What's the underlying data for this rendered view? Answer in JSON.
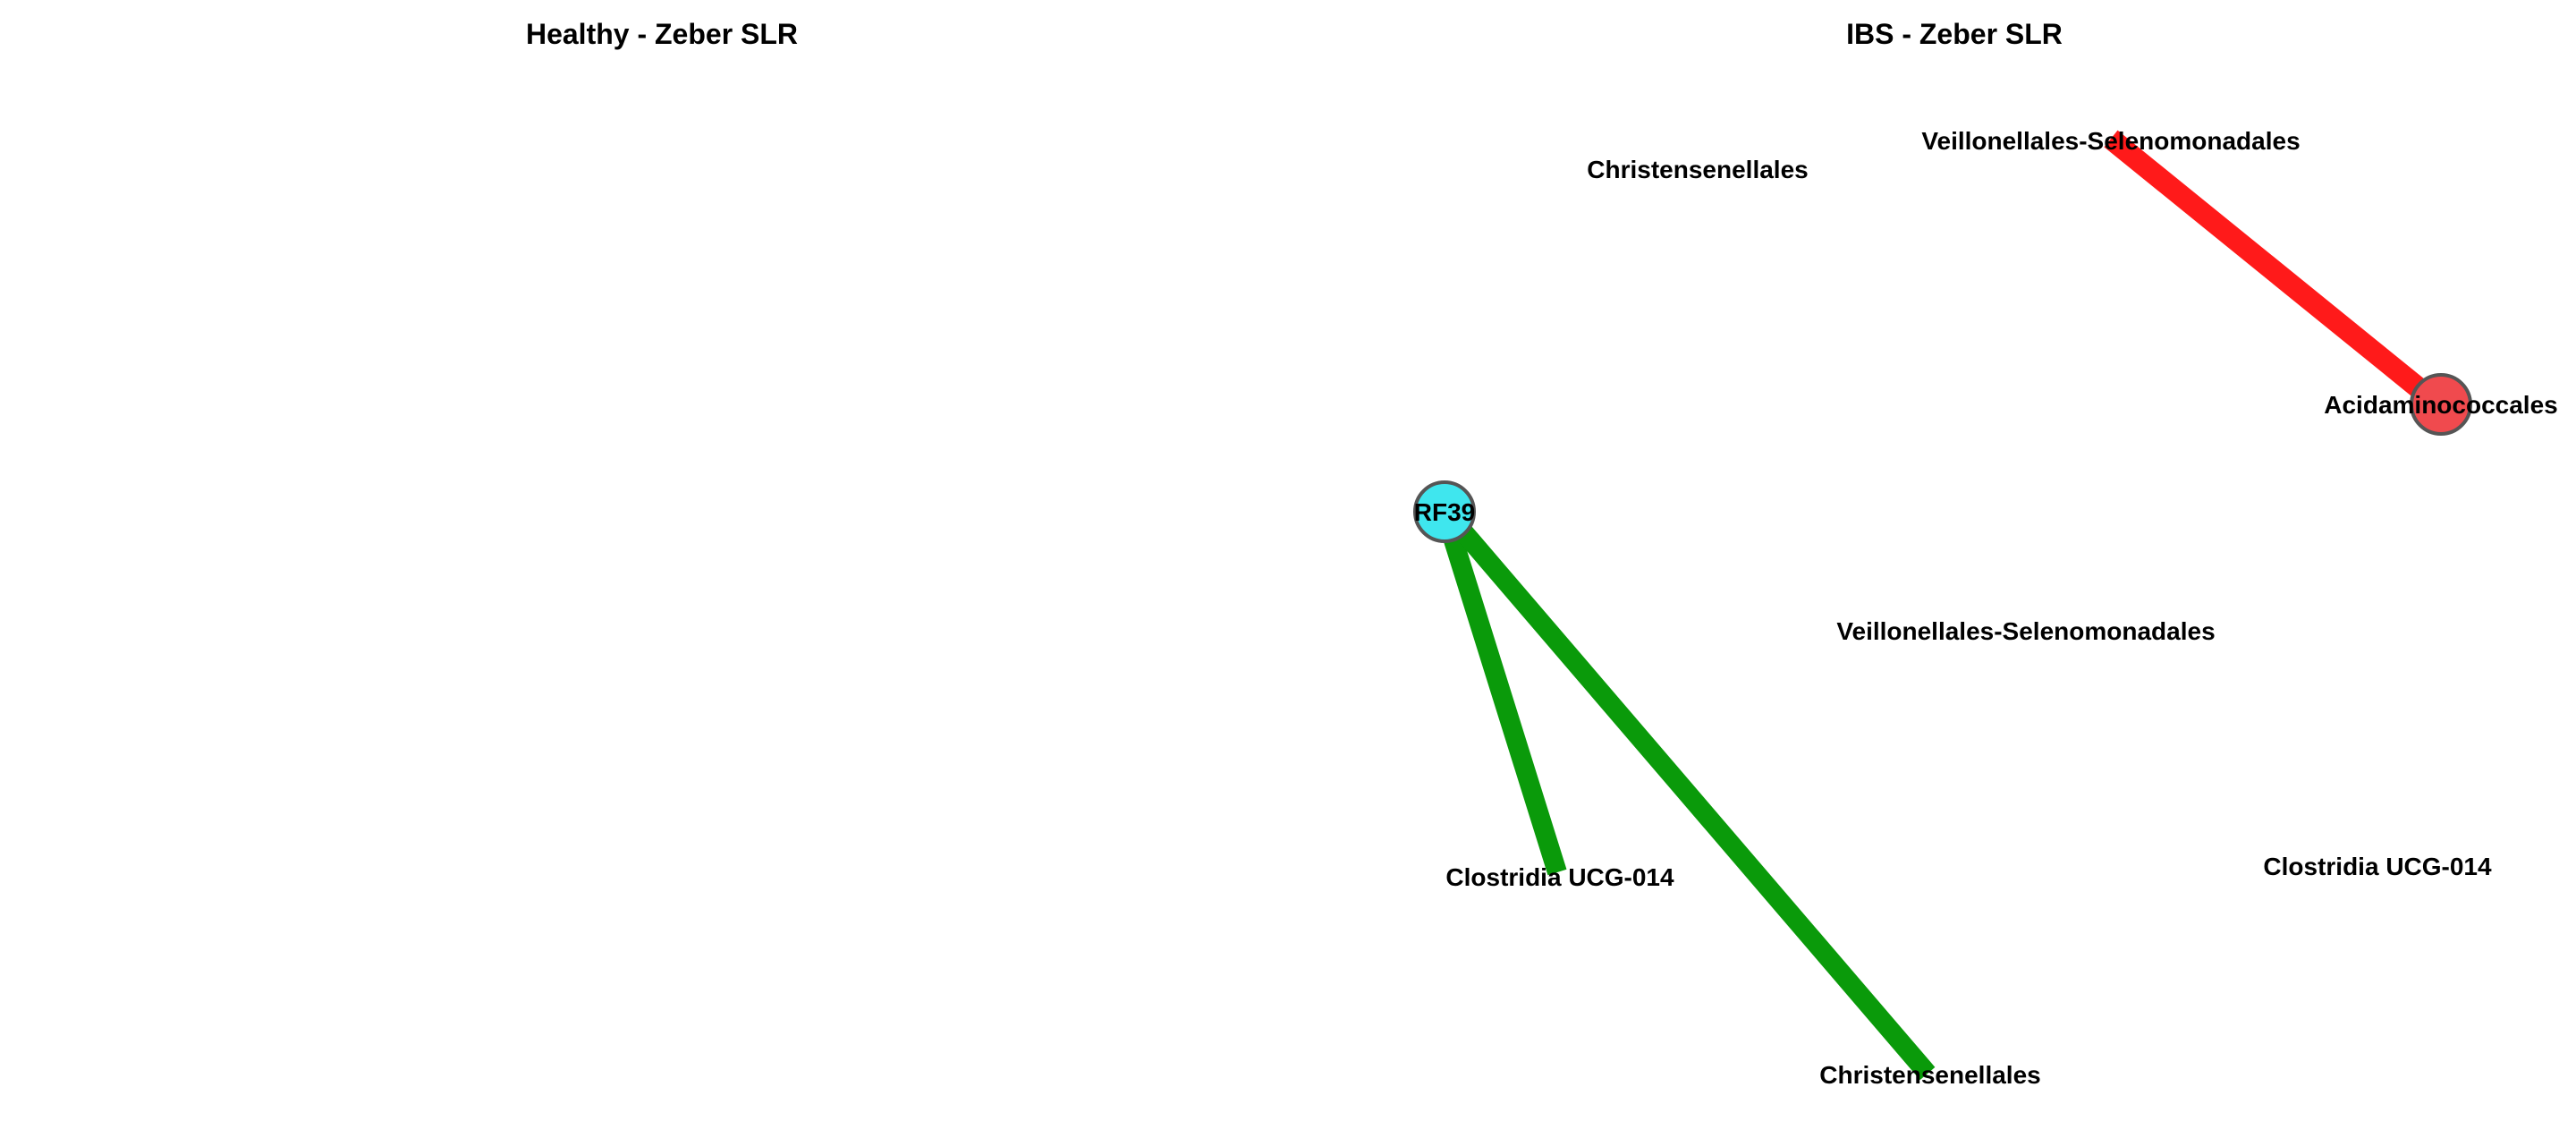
{
  "figure": {
    "healthy_title": "Healthy - Zeber SLR",
    "ibs_title": "IBS - Zeber SLR"
  },
  "healthy_network": {
    "nodes": [
      {
        "id": "h-christensenellales",
        "label": "Christensenellales",
        "drawn_as_circle": false
      },
      {
        "id": "h-rf39",
        "label": "RF39",
        "drawn_as_circle": true,
        "color": "#3fe6ee"
      },
      {
        "id": "h-clostridia",
        "label": "Clostridia UCG-014",
        "drawn_as_circle": false
      },
      {
        "id": "h-christensenellales-2",
        "label": "Christensenellales",
        "drawn_as_circle": false
      }
    ],
    "edges": [
      {
        "source": "h-rf39",
        "target": "h-clostridia",
        "color": "#0a9a0a",
        "sign": "positive"
      },
      {
        "source": "h-rf39",
        "target": "h-christensenellales-2",
        "color": "#0a9a0a",
        "sign": "positive"
      }
    ]
  },
  "ibs_network": {
    "nodes": [
      {
        "id": "i-veillonellales-top",
        "label": "Veillonellales-Selenomonadales",
        "drawn_as_circle": false
      },
      {
        "id": "i-acidaminococcales",
        "label": "Acidaminococcales",
        "drawn_as_circle": true,
        "color": "#f04a4e"
      },
      {
        "id": "i-veillonellales-mid",
        "label": "Veillonellales-Selenomonadales",
        "drawn_as_circle": false
      },
      {
        "id": "i-clostridia",
        "label": "Clostridia UCG-014",
        "drawn_as_circle": false
      }
    ],
    "edges": [
      {
        "source": "i-veillonellales-top",
        "target": "i-acidaminococcales",
        "color": "#ff1a1a",
        "sign": "negative"
      }
    ]
  },
  "colors": {
    "positive_edge": "#0a9a0a",
    "negative_edge": "#ff1a1a",
    "node_outline": "#555555"
  }
}
